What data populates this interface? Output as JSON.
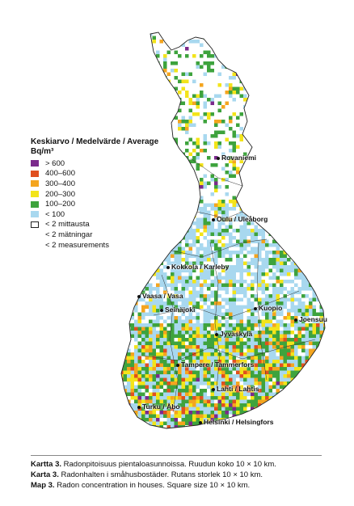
{
  "legend": {
    "title_line1": "Keskiarvo / Medelvärde / Average",
    "title_line2": "Bq/m³",
    "items": [
      {
        "label": "> 600",
        "color": "#7b2a8c"
      },
      {
        "label": "400–600",
        "color": "#e0501f"
      },
      {
        "label": "300–400",
        "color": "#f4a51f"
      },
      {
        "label": "200–300",
        "color": "#f3e41a"
      },
      {
        "label": "100–200",
        "color": "#3ea33d"
      },
      {
        "label": "< 100",
        "color": "#a8d8ef"
      },
      {
        "label": "< 2 mittausta",
        "color": "#ffffff"
      },
      {
        "label": "< 2 mätningar",
        "color": ""
      },
      {
        "label": "< 2 measurements",
        "color": ""
      }
    ]
  },
  "cities": [
    "Rovaniemi",
    "Oulu / Uleåborg",
    "Kokkola / Karleby",
    "Vaasa / Vasa",
    "Seinäjoki",
    "Kuopio",
    "Joensuu",
    "Jyväskylä",
    "Tampere / Tammerfors",
    "Lahti / Lahtis",
    "Turku / Åbo",
    "Helsinki / Helsingfors"
  ],
  "caption": [
    {
      "label": "Kartta 3.",
      "text": "Radonpitoisuus pientaloasunnoissa. Ruudun koko 10 × 10 km."
    },
    {
      "label": "Karta 3.",
      "text": "Radonhalten i småhusbostäder. Rutans storlek 10 × 10 km."
    },
    {
      "label": "Map 3.",
      "text": "Radon concentration in houses. Square size 10 × 10 km."
    }
  ]
}
